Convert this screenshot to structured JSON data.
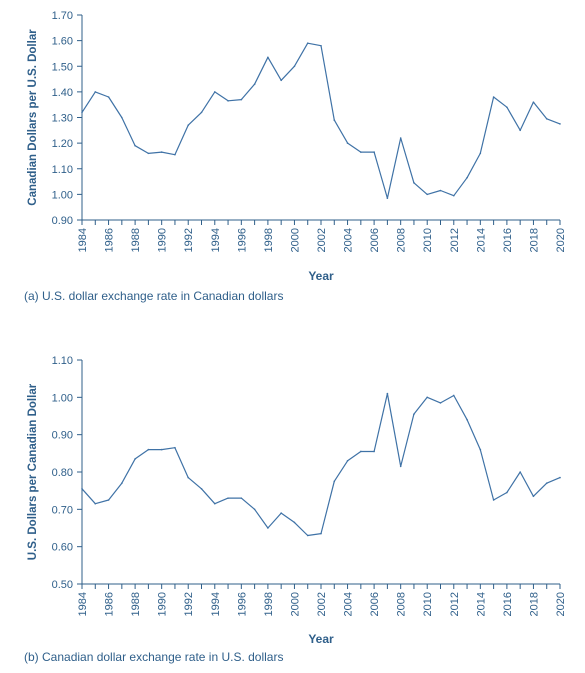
{
  "colors": {
    "axis": "#2f5f8a",
    "line": "#3f72a6",
    "text": "#2f5f8a"
  },
  "chart_data": [
    {
      "type": "line",
      "caption": "(a) U.S. dollar exchange rate in Canadian dollars",
      "xlabel": "Year",
      "ylabel": "Canadian Dollars per U.S. Dollar",
      "xlim": [
        1984,
        2020
      ],
      "ylim": [
        0.9,
        1.7
      ],
      "yticks": [
        "0.90",
        "1.00",
        "1.10",
        "1.20",
        "1.30",
        "1.40",
        "1.50",
        "1.60",
        "1.70"
      ],
      "xticks": [
        "1984",
        "1986",
        "1988",
        "1990",
        "1992",
        "1994",
        "1996",
        "1998",
        "2000",
        "2002",
        "2004",
        "2006",
        "2008",
        "2010",
        "2012",
        "2014",
        "2016",
        "2018",
        "2020"
      ],
      "grid": false,
      "x": [
        1984,
        1985,
        1986,
        1987,
        1988,
        1989,
        1990,
        1991,
        1992,
        1993,
        1994,
        1995,
        1996,
        1997,
        1998,
        1999,
        2000,
        2001,
        2002,
        2003,
        2004,
        2005,
        2006,
        2007,
        2008,
        2009,
        2010,
        2011,
        2012,
        2013,
        2014,
        2015,
        2016,
        2017,
        2018,
        2019,
        2020
      ],
      "y": [
        1.32,
        1.4,
        1.38,
        1.3,
        1.19,
        1.16,
        1.165,
        1.155,
        1.27,
        1.32,
        1.4,
        1.365,
        1.37,
        1.43,
        1.535,
        1.445,
        1.5,
        1.59,
        1.58,
        1.29,
        1.2,
        1.165,
        1.165,
        0.985,
        1.22,
        1.045,
        1.0,
        1.015,
        0.995,
        1.065,
        1.16,
        1.38,
        1.34,
        1.25,
        1.36,
        1.295,
        1.275
      ]
    },
    {
      "type": "line",
      "caption": "(b) Canadian dollar exchange rate in U.S. dollars",
      "xlabel": "Year",
      "ylabel": "U.S. Dollars per Canadian Dollar",
      "xlim": [
        1984,
        2020
      ],
      "ylim": [
        0.5,
        1.1
      ],
      "yticks": [
        "0.50",
        "0.60",
        "0.70",
        "0.80",
        "0.90",
        "1.00",
        "1.10"
      ],
      "xticks": [
        "1984",
        "1986",
        "1988",
        "1990",
        "1992",
        "1994",
        "1996",
        "1998",
        "2000",
        "2002",
        "2004",
        "2006",
        "2008",
        "2010",
        "2012",
        "2014",
        "2016",
        "2018",
        "2020"
      ],
      "grid": false,
      "x": [
        1984,
        1985,
        1986,
        1987,
        1988,
        1989,
        1990,
        1991,
        1992,
        1993,
        1994,
        1995,
        1996,
        1997,
        1998,
        1999,
        2000,
        2001,
        2002,
        2003,
        2004,
        2005,
        2006,
        2007,
        2008,
        2009,
        2010,
        2011,
        2012,
        2013,
        2014,
        2015,
        2016,
        2017,
        2018,
        2019,
        2020
      ],
      "y": [
        0.755,
        0.715,
        0.725,
        0.77,
        0.835,
        0.86,
        0.86,
        0.865,
        0.785,
        0.755,
        0.715,
        0.73,
        0.73,
        0.7,
        0.65,
        0.69,
        0.665,
        0.63,
        0.635,
        0.775,
        0.83,
        0.855,
        0.855,
        1.01,
        0.815,
        0.955,
        1.0,
        0.985,
        1.005,
        0.94,
        0.86,
        0.725,
        0.745,
        0.8,
        0.735,
        0.77,
        0.785
      ]
    }
  ]
}
